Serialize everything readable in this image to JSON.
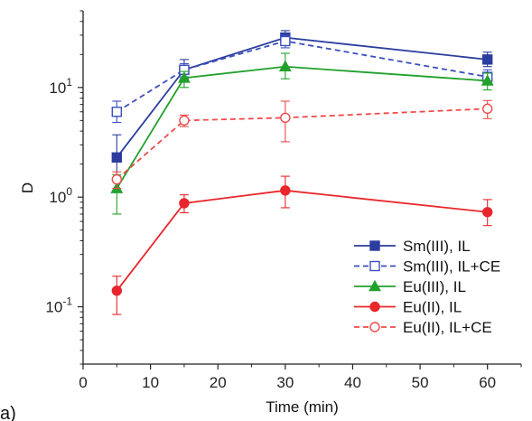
{
  "panel_label": "a)",
  "chart_data": {
    "type": "line",
    "xlabel": "Time (min)",
    "ylabel": "D",
    "xlim": [
      0,
      65
    ],
    "ylim": [
      0.03,
      50
    ],
    "yscale": "log",
    "x_ticks": [
      0,
      10,
      20,
      30,
      40,
      50,
      60
    ],
    "y_ticks": [
      {
        "value": 0.1,
        "base": "10",
        "exp": "-1"
      },
      {
        "value": 1,
        "base": "10",
        "exp": "0"
      },
      {
        "value": 10,
        "base": "10",
        "exp": "1"
      }
    ],
    "grid": false,
    "legend_position": "bottom-right",
    "x": [
      5,
      15,
      30,
      60
    ],
    "series": [
      {
        "name": "Sm(III), IL",
        "color": "#2b3d9e",
        "marker": "square",
        "filled": true,
        "dashed": false,
        "values": [
          2.3,
          14.5,
          28.5,
          18.0
        ],
        "err_low": [
          1.5,
          12.0,
          24.5,
          15.5
        ],
        "err_high": [
          3.7,
          18.0,
          33.0,
          21.0
        ]
      },
      {
        "name": "Sm(III), IL+CE",
        "color": "#3b4fc0",
        "marker": "square",
        "filled": false,
        "dashed": true,
        "values": [
          6.0,
          14.5,
          26.5,
          12.5
        ],
        "err_low": [
          4.8,
          12.5,
          23.0,
          11.0
        ],
        "err_high": [
          7.5,
          16.5,
          30.0,
          14.5
        ]
      },
      {
        "name": "Eu(III), IL",
        "color": "#22a02c",
        "marker": "triangle",
        "filled": true,
        "dashed": false,
        "values": [
          1.2,
          12.2,
          15.5,
          11.5
        ],
        "err_low": [
          0.7,
          10.0,
          12.0,
          9.5
        ],
        "err_high": [
          1.6,
          14.0,
          20.5,
          13.5
        ]
      },
      {
        "name": "Eu(II), IL",
        "color": "#e8262b",
        "marker": "circle",
        "filled": true,
        "dashed": false,
        "values": [
          0.14,
          0.88,
          1.15,
          0.73
        ],
        "err_low": [
          0.085,
          0.72,
          0.8,
          0.55
        ],
        "err_high": [
          0.19,
          1.05,
          1.55,
          0.95
        ]
      },
      {
        "name": "Eu(II), IL+CE",
        "color": "#ef4a4a",
        "marker": "circle",
        "filled": false,
        "dashed": true,
        "values": [
          1.45,
          5.0,
          5.3,
          6.4
        ],
        "err_low": [
          1.2,
          4.4,
          3.2,
          5.2
        ],
        "err_high": [
          1.7,
          5.6,
          7.5,
          7.6
        ]
      }
    ]
  }
}
